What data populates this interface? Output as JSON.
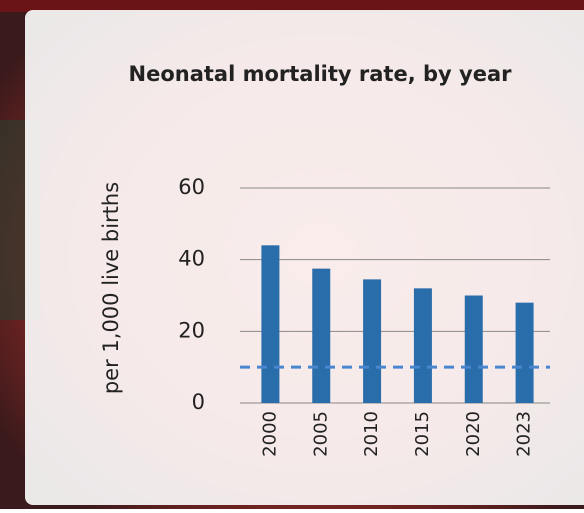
{
  "chart_data": {
    "type": "bar",
    "title": "Neonatal mortality rate, by year",
    "y_label": "per 1,000 live births",
    "categories": [
      "2000",
      "2005",
      "2010",
      "2015",
      "2020",
      "2023"
    ],
    "values": [
      44,
      37.5,
      34.5,
      32,
      30,
      28
    ],
    "color": "#2a6dab",
    "target_line": {
      "value": 10,
      "color": "#4a86d0"
    },
    "ylim": [
      0,
      60
    ],
    "yticks": [
      0,
      20,
      40,
      60
    ],
    "grid": true
  }
}
